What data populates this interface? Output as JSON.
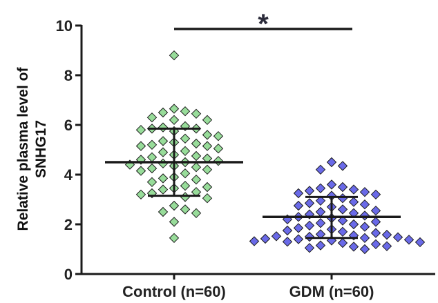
{
  "chart_data": {
    "type": "scatter",
    "ylabel_lines": [
      "Relative plasma level of",
      "SNHG17"
    ],
    "ylim": [
      0,
      10
    ],
    "yticks": [
      "0",
      "2",
      "4",
      "6",
      "8",
      "10"
    ],
    "categories": [
      "Control (n=60)",
      "GDM (n=60)"
    ],
    "significance": "*",
    "colors": {
      "control": "#98dc9a",
      "gdm": "#6a6ae8",
      "marker_edge": "#1a1a1a",
      "axis": "#1a1a1a"
    },
    "series": [
      {
        "category": "Control (n=60)",
        "mean": 4.5,
        "sd_upper": 5.85,
        "sd_lower": 3.15,
        "values": [
          8.8,
          6.65,
          6.55,
          6.5,
          6.45,
          6.3,
          6.2,
          6.2,
          5.95,
          5.9,
          5.85,
          5.85,
          5.8,
          5.75,
          5.6,
          5.55,
          5.45,
          5.35,
          5.3,
          5.25,
          5.2,
          5.15,
          5.15,
          5.05,
          4.95,
          4.9,
          4.8,
          4.75,
          4.7,
          4.65,
          4.6,
          4.55,
          4.5,
          4.45,
          4.4,
          4.35,
          4.3,
          4.25,
          4.2,
          4.15,
          4.05,
          3.9,
          3.85,
          3.8,
          3.7,
          3.55,
          3.5,
          3.45,
          3.4,
          3.3,
          3.25,
          3.2,
          3.1,
          3.05,
          2.75,
          2.6,
          2.5,
          2.45,
          2.1,
          1.45
        ]
      },
      {
        "category": "GDM (n=60)",
        "mean": 2.3,
        "sd_upper": 3.1,
        "sd_lower": 1.45,
        "values": [
          4.5,
          4.35,
          4.2,
          3.6,
          3.5,
          3.45,
          3.4,
          3.35,
          3.3,
          3.25,
          3.2,
          3.15,
          3.05,
          2.95,
          2.9,
          2.85,
          2.8,
          2.75,
          2.7,
          2.6,
          2.55,
          2.5,
          2.45,
          2.4,
          2.35,
          2.3,
          2.25,
          2.2,
          2.15,
          2.1,
          2.05,
          2.0,
          1.95,
          1.9,
          1.85,
          1.8,
          1.75,
          1.7,
          1.65,
          1.6,
          1.58,
          1.55,
          1.52,
          1.5,
          1.48,
          1.45,
          1.42,
          1.4,
          1.38,
          1.35,
          1.32,
          1.3,
          1.28,
          1.25,
          1.2,
          1.15,
          1.12,
          1.1,
          1.05,
          1.0
        ]
      }
    ]
  }
}
